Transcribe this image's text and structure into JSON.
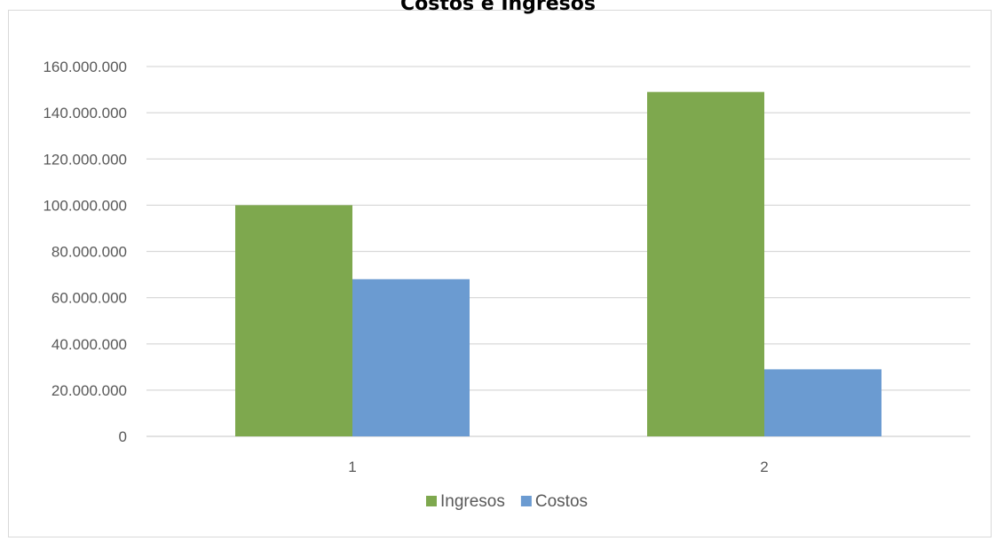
{
  "chart_data": {
    "type": "bar",
    "title": "Costos e Ingresos",
    "categories": [
      "1",
      "2"
    ],
    "series": [
      {
        "name": "Ingresos",
        "color": "#7ea84e",
        "values": [
          100000000,
          149000000
        ]
      },
      {
        "name": "Costos",
        "color": "#6b9bd1",
        "values": [
          68000000,
          29000000
        ]
      }
    ],
    "yticks": [
      "0",
      "20.000.000",
      "40.000.000",
      "60.000.000",
      "80.000.000",
      "100.000.000",
      "120.000.000",
      "140.000.000",
      "160.000.000"
    ],
    "ylim": [
      0,
      160000000
    ],
    "grid": true,
    "legend": "bottom"
  }
}
